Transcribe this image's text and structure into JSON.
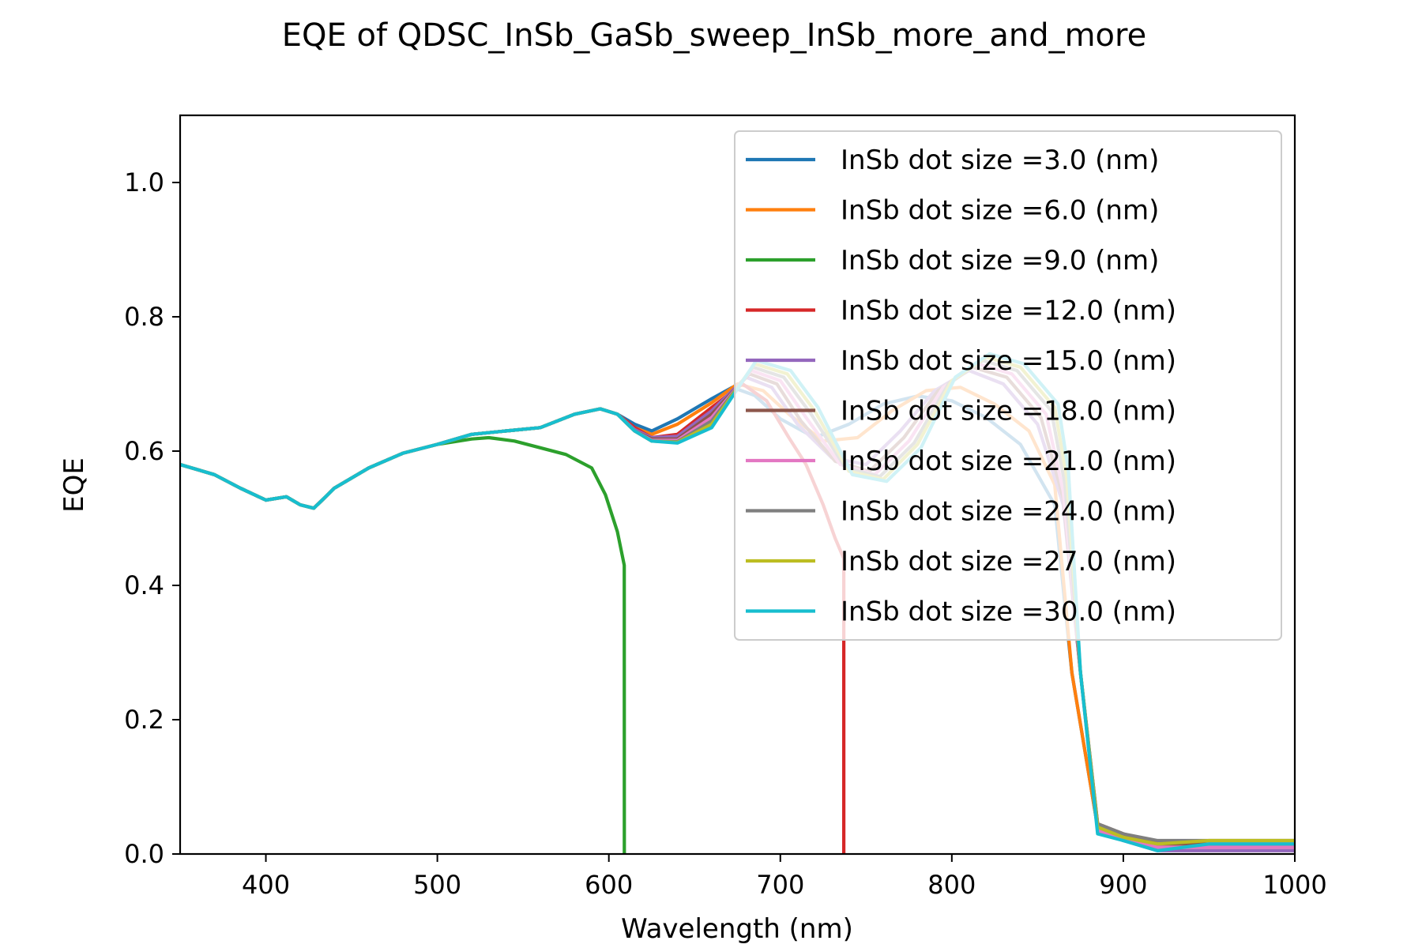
{
  "chart_data": {
    "type": "line",
    "title": "EQE of  QDSC_InSb_GaSb_sweep_InSb_more_and_more",
    "xlabel": "Wavelength (nm)",
    "ylabel": "EQE",
    "xlim": [
      350,
      1000
    ],
    "ylim": [
      0,
      1.1
    ],
    "xticks": [
      400,
      500,
      600,
      700,
      800,
      900,
      1000
    ],
    "xtick_labels": [
      "400",
      "500",
      "600",
      "700",
      "800",
      "900",
      "1000"
    ],
    "yticks": [
      0,
      0.2,
      0.4,
      0.6,
      0.8,
      1.0
    ],
    "ytick_labels": [
      "0.0",
      "0.2",
      "0.4",
      "0.6",
      "0.8",
      "1.0"
    ],
    "grid": false,
    "legend": "top-right",
    "series": [
      {
        "name": "InSb dot size =3.0 (nm)",
        "color": "#1f77b4",
        "x": [
          350,
          370,
          385,
          400,
          412,
          420,
          428,
          440,
          460,
          480,
          500,
          520,
          540,
          560,
          580,
          595,
          605,
          615,
          625,
          640,
          660,
          672,
          685,
          700,
          720,
          740,
          760,
          780,
          800,
          820,
          840,
          860,
          870,
          885,
          900,
          920,
          950,
          1000
        ],
        "y": [
          0.58,
          0.565,
          0.545,
          0.527,
          0.532,
          0.52,
          0.515,
          0.545,
          0.575,
          0.597,
          0.61,
          0.625,
          0.63,
          0.635,
          0.655,
          0.663,
          0.655,
          0.64,
          0.63,
          0.648,
          0.678,
          0.695,
          0.683,
          0.648,
          0.62,
          0.64,
          0.67,
          0.682,
          0.675,
          0.65,
          0.61,
          0.52,
          0.27,
          0.04,
          0.02,
          0.01,
          0.01,
          0.01
        ]
      },
      {
        "name": "InSb dot size =6.0 (nm)",
        "color": "#ff7f0e",
        "x": [
          350,
          370,
          385,
          400,
          412,
          420,
          428,
          440,
          460,
          480,
          500,
          520,
          540,
          560,
          580,
          595,
          605,
          615,
          625,
          640,
          660,
          675,
          690,
          705,
          725,
          745,
          765,
          785,
          805,
          825,
          845,
          860,
          870,
          885,
          900,
          920,
          950,
          1000
        ],
        "y": [
          0.58,
          0.565,
          0.545,
          0.527,
          0.532,
          0.52,
          0.515,
          0.545,
          0.575,
          0.597,
          0.61,
          0.625,
          0.63,
          0.635,
          0.655,
          0.663,
          0.655,
          0.635,
          0.625,
          0.64,
          0.672,
          0.7,
          0.69,
          0.655,
          0.615,
          0.62,
          0.66,
          0.69,
          0.695,
          0.67,
          0.63,
          0.55,
          0.27,
          0.04,
          0.02,
          0.01,
          0.01,
          0.01
        ]
      },
      {
        "name": "InSb dot size =9.0 (nm)",
        "color": "#2ca02c",
        "x": [
          350,
          370,
          385,
          400,
          412,
          420,
          428,
          440,
          460,
          480,
          500,
          520,
          530,
          545,
          560,
          575,
          590,
          598,
          605,
          609,
          609.01
        ],
        "y": [
          0.58,
          0.565,
          0.545,
          0.527,
          0.532,
          0.52,
          0.515,
          0.545,
          0.575,
          0.597,
          0.61,
          0.618,
          0.62,
          0.615,
          0.605,
          0.595,
          0.575,
          0.535,
          0.48,
          0.43,
          0
        ]
      },
      {
        "name": "InSb dot size =12.0 (nm)",
        "color": "#d62728",
        "x": [
          350,
          370,
          385,
          400,
          412,
          420,
          428,
          440,
          460,
          480,
          500,
          520,
          540,
          560,
          580,
          595,
          605,
          615,
          625,
          640,
          660,
          678,
          692,
          705,
          715,
          725,
          732,
          737,
          737.01
        ],
        "y": [
          0.58,
          0.565,
          0.545,
          0.527,
          0.532,
          0.52,
          0.515,
          0.545,
          0.575,
          0.597,
          0.61,
          0.625,
          0.63,
          0.635,
          0.655,
          0.663,
          0.655,
          0.635,
          0.62,
          0.625,
          0.665,
          0.7,
          0.675,
          0.62,
          0.58,
          0.52,
          0.47,
          0.44,
          0
        ]
      },
      {
        "name": "InSb dot size =15.0 (nm)",
        "color": "#9467bd",
        "x": [
          350,
          370,
          385,
          400,
          412,
          420,
          428,
          440,
          460,
          480,
          500,
          520,
          540,
          560,
          580,
          595,
          605,
          615,
          625,
          640,
          660,
          680,
          695,
          710,
          730,
          750,
          770,
          790,
          810,
          830,
          850,
          865,
          875,
          885,
          900,
          920,
          950,
          1000
        ],
        "y": [
          0.58,
          0.565,
          0.545,
          0.527,
          0.532,
          0.52,
          0.515,
          0.545,
          0.575,
          0.597,
          0.61,
          0.625,
          0.63,
          0.635,
          0.655,
          0.663,
          0.655,
          0.632,
          0.62,
          0.622,
          0.66,
          0.71,
          0.695,
          0.64,
          0.59,
          0.58,
          0.63,
          0.69,
          0.72,
          0.7,
          0.64,
          0.52,
          0.27,
          0.035,
          0.02,
          0.005,
          0.005,
          0.005
        ]
      },
      {
        "name": "InSb dot size =18.0 (nm)",
        "color": "#8c564b",
        "x": [
          350,
          370,
          385,
          400,
          412,
          420,
          428,
          440,
          460,
          480,
          500,
          520,
          540,
          560,
          580,
          595,
          605,
          615,
          625,
          640,
          660,
          682,
          698,
          712,
          732,
          752,
          772,
          792,
          812,
          832,
          852,
          865,
          875,
          885,
          900,
          920,
          950,
          1000
        ],
        "y": [
          0.58,
          0.565,
          0.545,
          0.527,
          0.532,
          0.52,
          0.515,
          0.545,
          0.575,
          0.597,
          0.61,
          0.625,
          0.63,
          0.635,
          0.655,
          0.663,
          0.655,
          0.63,
          0.618,
          0.618,
          0.655,
          0.715,
          0.7,
          0.645,
          0.585,
          0.57,
          0.62,
          0.69,
          0.725,
          0.71,
          0.65,
          0.53,
          0.27,
          0.045,
          0.03,
          0.015,
          0.015,
          0.015
        ]
      },
      {
        "name": "InSb dot size =21.0 (nm)",
        "color": "#e377c2",
        "x": [
          350,
          370,
          385,
          400,
          412,
          420,
          428,
          440,
          460,
          480,
          500,
          520,
          540,
          560,
          580,
          595,
          605,
          615,
          625,
          640,
          660,
          683,
          700,
          715,
          735,
          755,
          775,
          795,
          815,
          835,
          855,
          865,
          875,
          885,
          900,
          920,
          950,
          1000
        ],
        "y": [
          0.58,
          0.565,
          0.545,
          0.527,
          0.532,
          0.52,
          0.515,
          0.545,
          0.575,
          0.597,
          0.61,
          0.625,
          0.63,
          0.635,
          0.655,
          0.663,
          0.655,
          0.63,
          0.616,
          0.616,
          0.65,
          0.72,
          0.705,
          0.65,
          0.58,
          0.565,
          0.615,
          0.695,
          0.73,
          0.715,
          0.655,
          0.54,
          0.27,
          0.035,
          0.02,
          0.01,
          0.01,
          0.01
        ]
      },
      {
        "name": "InSb dot size =24.0 (nm)",
        "color": "#7f7f7f",
        "x": [
          350,
          370,
          385,
          400,
          412,
          420,
          428,
          440,
          460,
          480,
          500,
          520,
          540,
          560,
          580,
          595,
          605,
          615,
          625,
          640,
          660,
          684,
          702,
          718,
          738,
          758,
          778,
          798,
          818,
          838,
          858,
          866,
          875,
          885,
          900,
          920,
          950,
          1000
        ],
        "y": [
          0.58,
          0.565,
          0.545,
          0.527,
          0.532,
          0.52,
          0.515,
          0.545,
          0.575,
          0.597,
          0.61,
          0.625,
          0.63,
          0.635,
          0.655,
          0.663,
          0.655,
          0.63,
          0.615,
          0.614,
          0.645,
          0.725,
          0.71,
          0.655,
          0.575,
          0.562,
          0.612,
          0.7,
          0.735,
          0.72,
          0.66,
          0.55,
          0.27,
          0.045,
          0.03,
          0.02,
          0.02,
          0.02
        ]
      },
      {
        "name": "InSb dot size =27.0 (nm)",
        "color": "#bcbd22",
        "x": [
          350,
          370,
          385,
          400,
          412,
          420,
          428,
          440,
          460,
          480,
          500,
          520,
          540,
          560,
          580,
          595,
          605,
          615,
          625,
          640,
          660,
          685,
          704,
          720,
          740,
          760,
          780,
          800,
          820,
          840,
          860,
          867,
          875,
          885,
          900,
          920,
          950,
          1000
        ],
        "y": [
          0.58,
          0.565,
          0.545,
          0.527,
          0.532,
          0.52,
          0.515,
          0.545,
          0.575,
          0.597,
          0.61,
          0.625,
          0.63,
          0.635,
          0.655,
          0.663,
          0.655,
          0.63,
          0.615,
          0.613,
          0.64,
          0.73,
          0.715,
          0.66,
          0.57,
          0.558,
          0.61,
          0.705,
          0.74,
          0.725,
          0.665,
          0.56,
          0.27,
          0.04,
          0.025,
          0.015,
          0.02,
          0.02
        ]
      },
      {
        "name": "InSb dot size =30.0 (nm)",
        "color": "#17becf",
        "x": [
          350,
          370,
          385,
          400,
          412,
          420,
          428,
          440,
          460,
          480,
          500,
          520,
          540,
          560,
          580,
          595,
          605,
          615,
          625,
          640,
          660,
          686,
          706,
          722,
          742,
          762,
          782,
          802,
          822,
          842,
          862,
          868,
          875,
          885,
          900,
          920,
          950,
          1000
        ],
        "y": [
          0.58,
          0.565,
          0.545,
          0.527,
          0.532,
          0.52,
          0.515,
          0.545,
          0.575,
          0.597,
          0.61,
          0.625,
          0.63,
          0.635,
          0.655,
          0.663,
          0.655,
          0.63,
          0.615,
          0.612,
          0.635,
          0.735,
          0.72,
          0.665,
          0.565,
          0.555,
          0.605,
          0.71,
          0.745,
          0.73,
          0.67,
          0.57,
          0.27,
          0.03,
          0.02,
          0.005,
          0.015,
          0.015
        ]
      }
    ]
  }
}
